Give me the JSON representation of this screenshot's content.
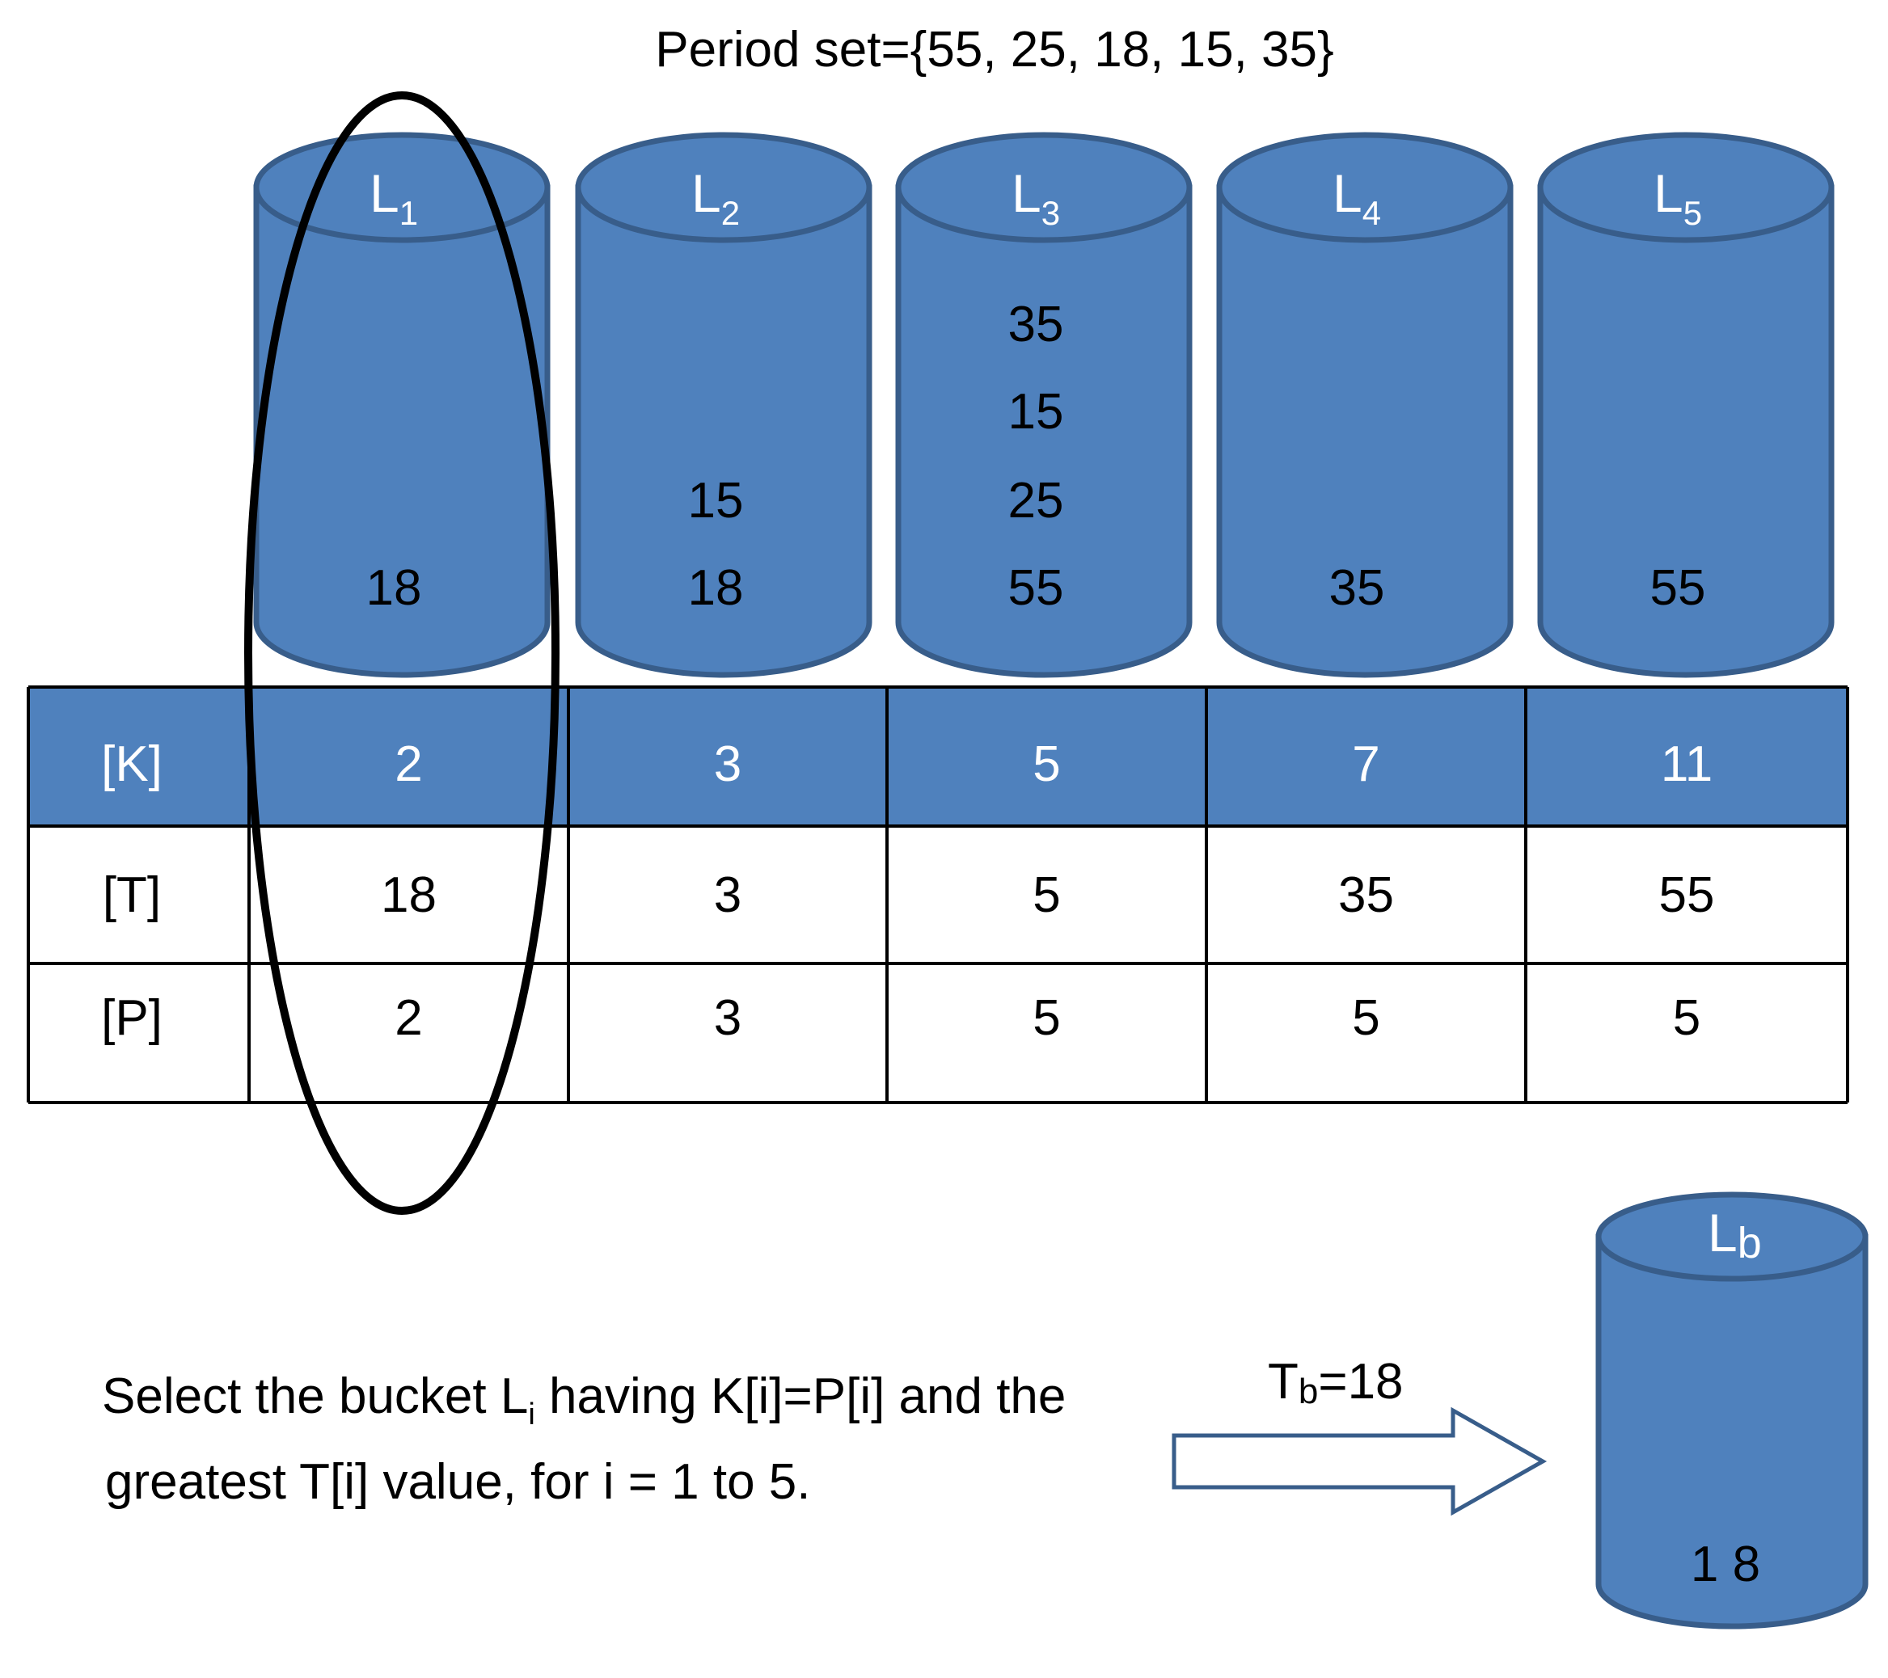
{
  "title": "Period set={55, 25, 18, 15, 35}",
  "colors": {
    "bucket_fill": "#4f81bd",
    "bucket_stroke": "#385d8a",
    "table_header": "#4f81bd"
  },
  "buckets": [
    {
      "label_main": "L",
      "label_sub": "1",
      "values": [
        "18"
      ]
    },
    {
      "label_main": "L",
      "label_sub": "2",
      "values": [
        "15",
        "18"
      ]
    },
    {
      "label_main": "L",
      "label_sub": "3",
      "values": [
        "35",
        "15",
        "25",
        "55"
      ]
    },
    {
      "label_main": "L",
      "label_sub": "4",
      "values": [
        "35"
      ]
    },
    {
      "label_main": "L",
      "label_sub": "5",
      "values": [
        "55"
      ]
    }
  ],
  "table": {
    "rows": [
      {
        "header": "[K]",
        "cells": [
          "2",
          "3",
          "5",
          "7",
          "11"
        ]
      },
      {
        "header": "[T]",
        "cells": [
          "18",
          "3",
          "5",
          "35",
          "55"
        ]
      },
      {
        "header": "[P]",
        "cells": [
          "2",
          "3",
          "5",
          "5",
          "5"
        ]
      }
    ]
  },
  "selected_column": 1,
  "instruction": {
    "line1_a": "Select the bucket L",
    "line1_sub": "i",
    "line1_b": " having K[i]=P[i] and the",
    "line2": "greatest T[i] value, for i = 1 to 5."
  },
  "arrow_label": {
    "main": "T",
    "sub": "b",
    "rest": "=18"
  },
  "result_bucket": {
    "label_main": "L",
    "label_sub": "b",
    "value": "1 8"
  }
}
